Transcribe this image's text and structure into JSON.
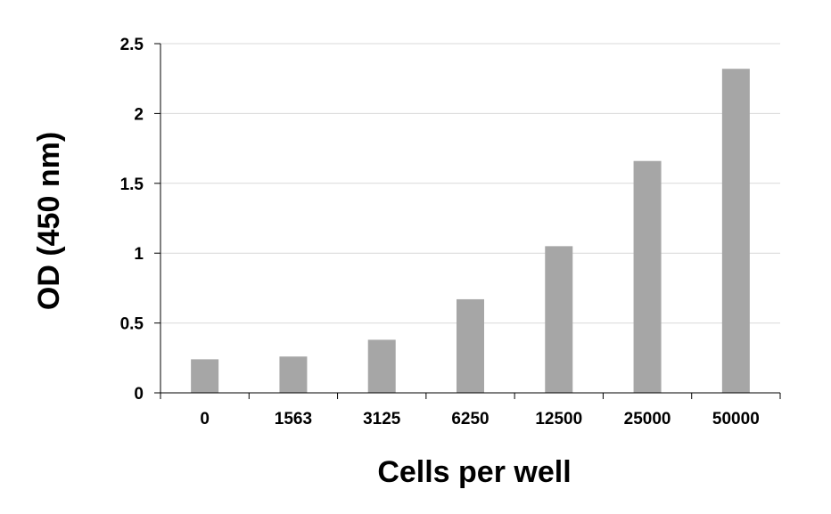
{
  "chart_data": {
    "type": "bar",
    "categories": [
      "0",
      "1563",
      "3125",
      "6250",
      "12500",
      "25000",
      "50000"
    ],
    "values": [
      0.24,
      0.26,
      0.38,
      0.67,
      1.05,
      1.66,
      2.32
    ],
    "xlabel": "Cells per well",
    "ylabel": "OD (450 nm)",
    "ylim": [
      0,
      2.5
    ],
    "yticks": [
      "0",
      "0.5",
      "1",
      "1.5",
      "2",
      "2.5"
    ],
    "grid": true,
    "legend": "none",
    "bar_color": "#a6a6a6",
    "grid_color": "#d9d9d9",
    "axis_color": "#000000"
  }
}
